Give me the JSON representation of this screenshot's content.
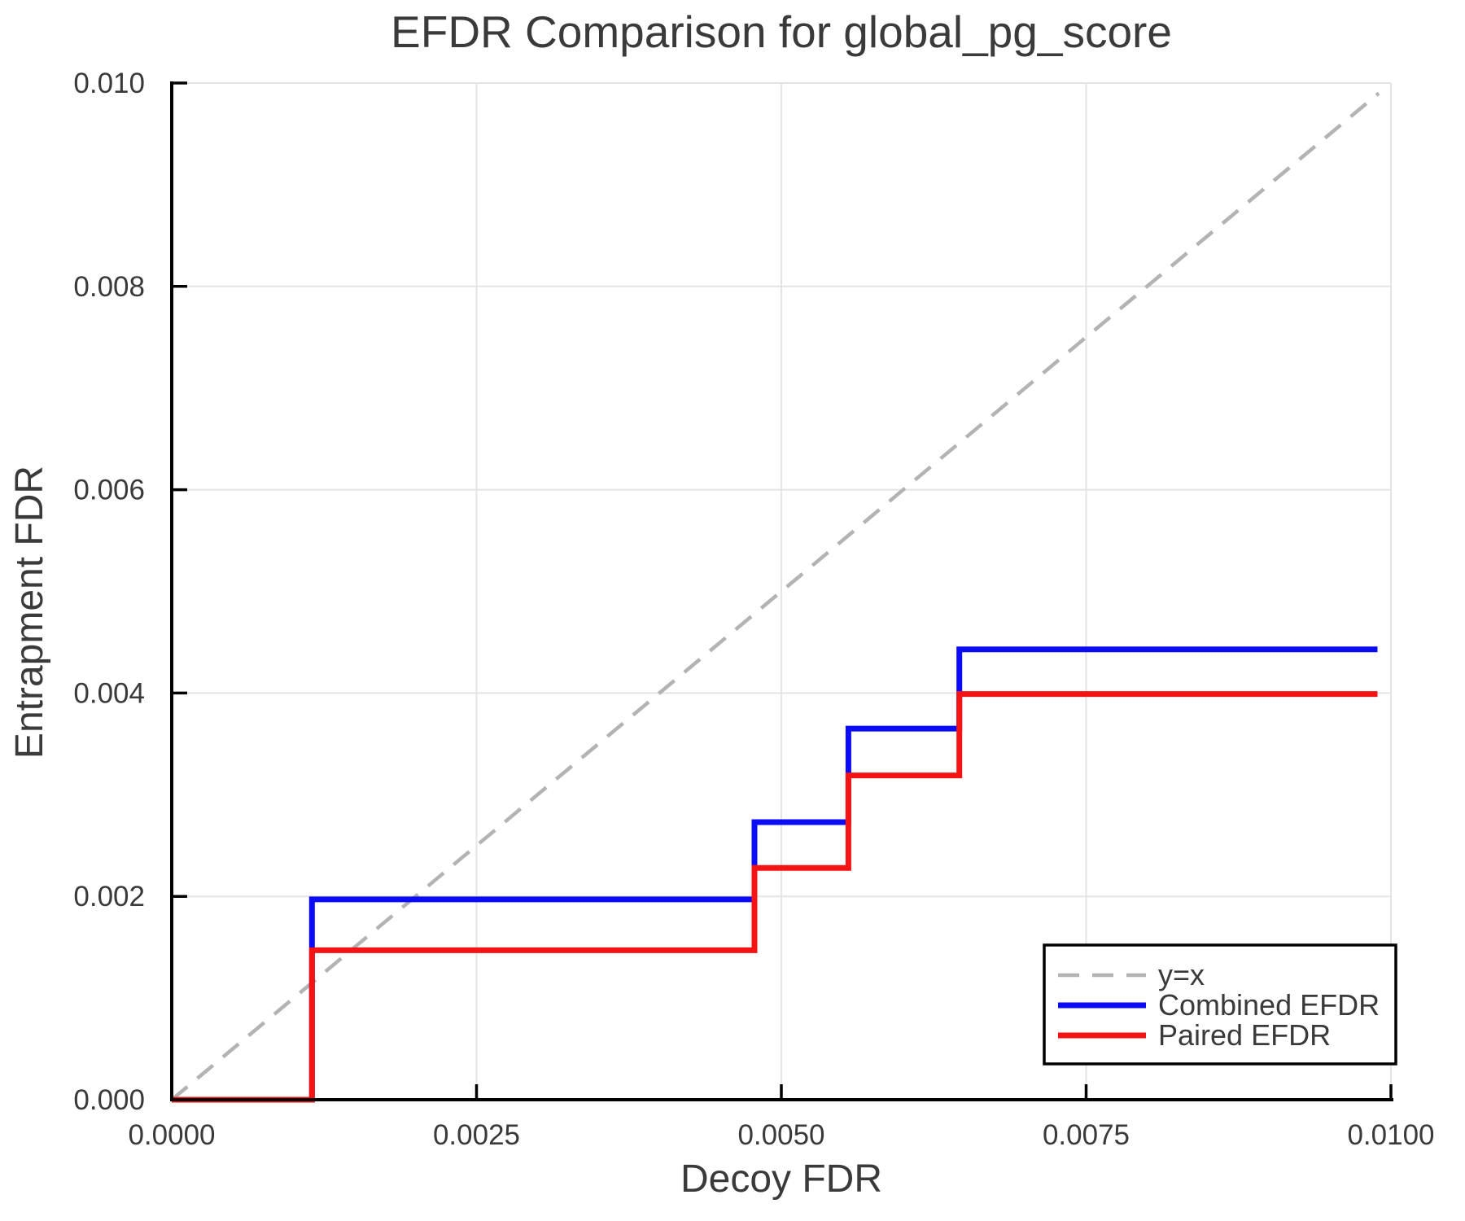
{
  "figure": {
    "background": "#ffffff"
  },
  "style": {
    "text_color": "#3a3a3a",
    "grid_color": "#e4e4e4",
    "spine_color": "#000000",
    "legend_border_color": "#000000",
    "legend_fill": "#ffffff"
  },
  "chart_data": {
    "type": "line",
    "title": "EFDR Comparison for global_pg_score",
    "xlabel": "Decoy FDR",
    "ylabel": "Entrapment FDR",
    "xlim": [
      0.0,
      0.01
    ],
    "ylim": [
      0.0,
      0.01
    ],
    "x_tick_values": [
      0.0,
      0.0025,
      0.005,
      0.0075,
      0.01
    ],
    "x_tick_labels": [
      "0.0000",
      "0.0025",
      "0.0050",
      "0.0075",
      "0.0100"
    ],
    "y_tick_values": [
      0.0,
      0.002,
      0.004,
      0.006,
      0.008,
      0.01
    ],
    "y_tick_labels": [
      "0.000",
      "0.002",
      "0.004",
      "0.006",
      "0.008",
      "0.010"
    ],
    "grid": true,
    "legend_position": "bottom-right",
    "series": [
      {
        "name": "y=x",
        "line_type": "diagonal-reference",
        "style": "dashed",
        "color": "#b3b3b3",
        "width": 4.5,
        "points": [
          [
            0.0,
            0.0
          ],
          [
            0.0099,
            0.0099
          ]
        ]
      },
      {
        "name": "Combined EFDR",
        "line_type": "step",
        "style": "solid",
        "color": "#0b0bf5",
        "width": 7,
        "points": [
          [
            0.0,
            0.0
          ],
          [
            0.00115,
            0.0
          ],
          [
            0.00115,
            0.00197
          ],
          [
            0.00478,
            0.00197
          ],
          [
            0.00478,
            0.00273
          ],
          [
            0.00555,
            0.00273
          ],
          [
            0.00555,
            0.00365
          ],
          [
            0.00646,
            0.00365
          ],
          [
            0.00646,
            0.00443
          ],
          [
            0.00989,
            0.00443
          ]
        ]
      },
      {
        "name": "Paired EFDR",
        "line_type": "step",
        "style": "solid",
        "color": "#f51414",
        "width": 7,
        "points": [
          [
            0.0,
            0.0
          ],
          [
            0.00115,
            0.0
          ],
          [
            0.00115,
            0.00147
          ],
          [
            0.00478,
            0.00147
          ],
          [
            0.00478,
            0.00228
          ],
          [
            0.00555,
            0.00228
          ],
          [
            0.00555,
            0.00319
          ],
          [
            0.00646,
            0.00319
          ],
          [
            0.00646,
            0.00399
          ],
          [
            0.00989,
            0.00399
          ]
        ]
      }
    ]
  }
}
